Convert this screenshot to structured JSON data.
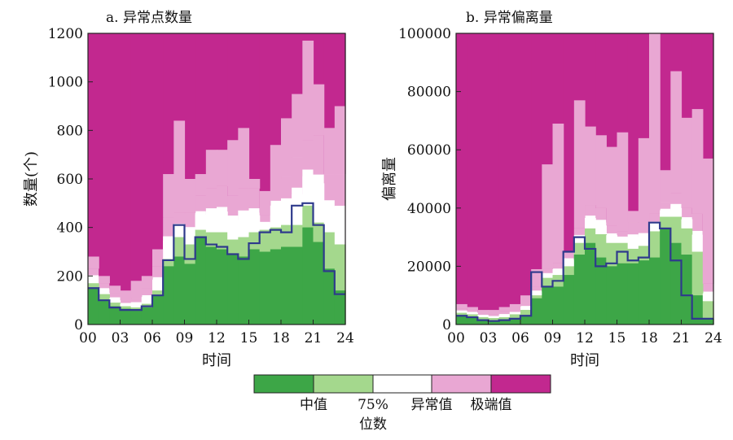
{
  "colors": {
    "median": "#3da647",
    "p75": "#a4d88d",
    "anomaly": "#ffffff",
    "anomaly_alt": "#e9a7d3",
    "extreme": "#c2288f",
    "line": "#2e3a8c"
  },
  "legend": {
    "items": [
      "中值",
      "75%位数",
      "异常值",
      "极端值"
    ],
    "label_median": "中值",
    "label_p75_a": "75%",
    "label_p75_b": "位数",
    "label_anomaly": "异常值",
    "label_extreme": "极端值"
  },
  "chart_data": [
    {
      "type": "area",
      "title": "a. 异常点数量",
      "xlabel": "时间",
      "ylabel": "数量(个)",
      "xticks": [
        "00",
        "03",
        "06",
        "09",
        "12",
        "15",
        "18",
        "21",
        "24"
      ],
      "xlim": [
        0,
        24
      ],
      "ylim": [
        0,
        1200
      ],
      "yticks": [
        "0",
        "200",
        "400",
        "600",
        "800",
        "1000",
        "1200"
      ],
      "x": [
        0,
        1,
        2,
        3,
        4,
        5,
        6,
        7,
        8,
        9,
        10,
        11,
        12,
        13,
        14,
        15,
        16,
        17,
        18,
        19,
        20,
        21,
        22,
        23
      ],
      "series": [
        {
          "name": "中值",
          "values": [
            150,
            100,
            75,
            65,
            60,
            70,
            120,
            240,
            280,
            250,
            360,
            320,
            310,
            290,
            280,
            310,
            300,
            310,
            320,
            320,
            400,
            340,
            230,
            140
          ]
        },
        {
          "name": "75%位数",
          "values": [
            170,
            125,
            90,
            75,
            70,
            85,
            140,
            270,
            360,
            330,
            390,
            380,
            380,
            350,
            360,
            380,
            390,
            400,
            410,
            410,
            490,
            420,
            380,
            330
          ]
        },
        {
          "name": "异常值",
          "values": [
            230,
            170,
            130,
            100,
            110,
            150,
            240,
            440,
            460,
            460,
            530,
            560,
            570,
            530,
            560,
            560,
            450,
            600,
            610,
            690,
            760,
            780,
            620,
            620
          ]
        },
        {
          "name": "极端值",
          "values": [
            280,
            200,
            160,
            140,
            180,
            200,
            310,
            620,
            840,
            600,
            620,
            720,
            720,
            760,
            810,
            600,
            550,
            740,
            850,
            950,
            1170,
            990,
            810,
            900
          ]
        }
      ],
      "median_line": [
        150,
        100,
        70,
        60,
        60,
        75,
        120,
        265,
        410,
        270,
        360,
        330,
        320,
        290,
        270,
        335,
        380,
        390,
        380,
        490,
        500,
        410,
        220,
        125
      ]
    },
    {
      "type": "area",
      "title": "b. 异常偏离量",
      "xlabel": "时间",
      "ylabel": "偏离量",
      "xticks": [
        "00",
        "03",
        "06",
        "09",
        "12",
        "15",
        "18",
        "21",
        "24"
      ],
      "xlim": [
        0,
        24
      ],
      "ylim": [
        0,
        100000
      ],
      "yticks": [
        "0",
        "20000",
        "40000",
        "60000",
        "80000",
        "100000"
      ],
      "x": [
        0,
        1,
        2,
        3,
        4,
        5,
        6,
        7,
        8,
        9,
        10,
        11,
        12,
        13,
        14,
        15,
        16,
        17,
        18,
        19,
        20,
        21,
        22,
        23
      ],
      "series": [
        {
          "name": "中值",
          "values": [
            3000,
            2500,
            1500,
            1200,
            1500,
            2000,
            3000,
            9000,
            13000,
            13000,
            17000,
            24000,
            28000,
            23000,
            20000,
            21000,
            21000,
            22000,
            23000,
            33000,
            28000,
            24000,
            10000,
            2000
          ]
        },
        {
          "name": "75%位数",
          "values": [
            4000,
            3500,
            2500,
            2200,
            2500,
            3500,
            5000,
            10000,
            16000,
            17000,
            20000,
            28000,
            33000,
            31000,
            28000,
            28000,
            26000,
            27000,
            32000,
            37000,
            37000,
            33000,
            25000,
            8000
          ]
        },
        {
          "name": "异常值",
          "values": [
            5500,
            5000,
            4000,
            3500,
            4500,
            5000,
            7500,
            13000,
            19000,
            21000,
            25000,
            33000,
            41000,
            40000,
            34000,
            32000,
            35000,
            35000,
            38000,
            42000,
            45000,
            40000,
            38000,
            14000
          ]
        },
        {
          "name": "极端值",
          "values": [
            7000,
            6000,
            5000,
            5000,
            6000,
            7000,
            10000,
            19000,
            55000,
            69000,
            24000,
            77000,
            68000,
            65000,
            61000,
            66000,
            39000,
            64000,
            100000,
            53000,
            87000,
            71000,
            74000,
            57000
          ]
        }
      ],
      "median_line": [
        3000,
        2500,
        1500,
        1200,
        1500,
        2000,
        3000,
        18000,
        13000,
        15000,
        25000,
        30000,
        26000,
        20000,
        21000,
        25000,
        22000,
        23000,
        35000,
        33000,
        22000,
        10000,
        2000,
        2000
      ]
    }
  ]
}
